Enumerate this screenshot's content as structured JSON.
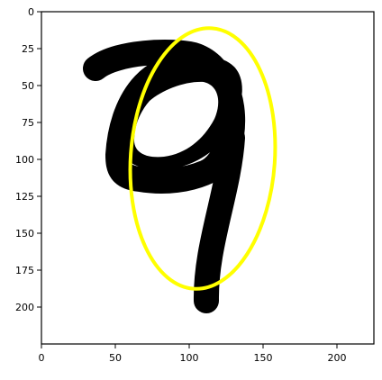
{
  "figure": {
    "image_width": 225,
    "image_height": 225,
    "xticks": [
      0,
      50,
      100,
      150,
      200
    ],
    "yticks": [
      0,
      25,
      50,
      75,
      100,
      125,
      150,
      175,
      200
    ],
    "xtick_labels": [
      "0",
      "50",
      "100",
      "150",
      "200"
    ],
    "ytick_labels": [
      "0",
      "25",
      "50",
      "75",
      "100",
      "125",
      "150",
      "175",
      "200"
    ],
    "digit_label": "9",
    "ellipse": {
      "center_x": 109,
      "center_y": 99,
      "radius_x": 49,
      "radius_y": 89,
      "rotation_deg": 4,
      "color": "#ffff00"
    },
    "digit_color": "#000000",
    "background_color": "#ffffff",
    "frame_color": "#000000"
  }
}
